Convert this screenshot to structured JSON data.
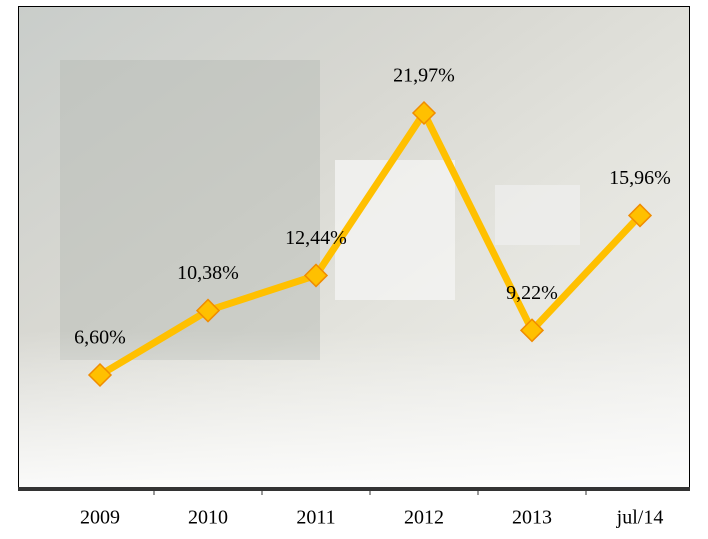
{
  "chart_data": {
    "type": "line",
    "categories": [
      "2009",
      "2010",
      "2011",
      "2012",
      "2013",
      "jul/14"
    ],
    "values": [
      6.6,
      10.38,
      12.44,
      21.97,
      9.22,
      15.96
    ],
    "value_labels": [
      "6,60%",
      "10,38%",
      "12,44%",
      "21,97%",
      "9,22%",
      "15,96%"
    ],
    "color": "#ffc000"
  }
}
